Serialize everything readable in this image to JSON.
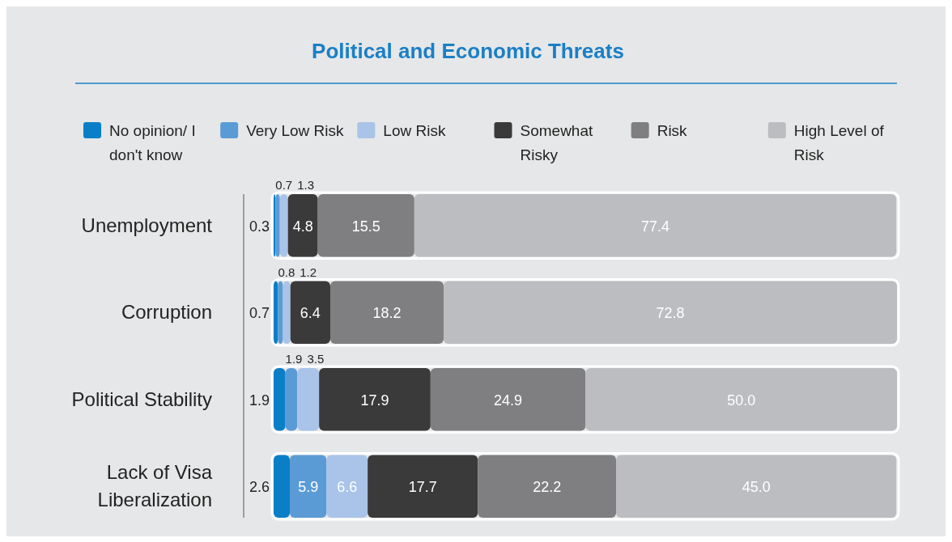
{
  "chart_data": {
    "type": "bar",
    "orientation": "horizontal",
    "stacked": true,
    "data_labels": true,
    "title": "Political and Economic Threats",
    "categories": [
      "Unemployment",
      "Corruption",
      "Political Stability",
      "Lack of Visa Liberalization"
    ],
    "series": [
      {
        "name": "No opinion/ I don't know",
        "color": "#0a7fc7",
        "values": [
          0.3,
          0.7,
          1.9,
          2.6
        ],
        "value_labels": [
          "0.3",
          "0.7",
          "1.9",
          "2.6"
        ]
      },
      {
        "name": "Very Low Risk",
        "color": "#5b9bd5",
        "values": [
          0.7,
          0.8,
          1.9,
          5.9
        ],
        "value_labels": [
          "0.7",
          "0.8",
          "1.9",
          "5.9"
        ]
      },
      {
        "name": "Low Risk",
        "color": "#a9c4e8",
        "values": [
          1.3,
          1.2,
          3.5,
          6.6
        ],
        "value_labels": [
          "1.3",
          "1.2",
          "3.5",
          "6.6"
        ]
      },
      {
        "name": "Somewhat Risky",
        "color": "#3a3a3a",
        "values": [
          4.8,
          6.4,
          17.9,
          17.7
        ],
        "value_labels": [
          "4.8",
          "6.4",
          "17.9",
          "17.7"
        ]
      },
      {
        "name": "Risk",
        "color": "#7f7f81",
        "values": [
          15.5,
          18.2,
          24.9,
          22.2
        ],
        "value_labels": [
          "15.5",
          "18.2",
          "24.9",
          "22.2"
        ]
      },
      {
        "name": "High Level of Risk",
        "color": "#bcbdc0",
        "values": [
          77.4,
          72.8,
          50.0,
          45.0
        ],
        "value_labels": [
          "77.4",
          "72.8",
          "50.0",
          "45.0"
        ]
      }
    ],
    "legend": "top"
  }
}
